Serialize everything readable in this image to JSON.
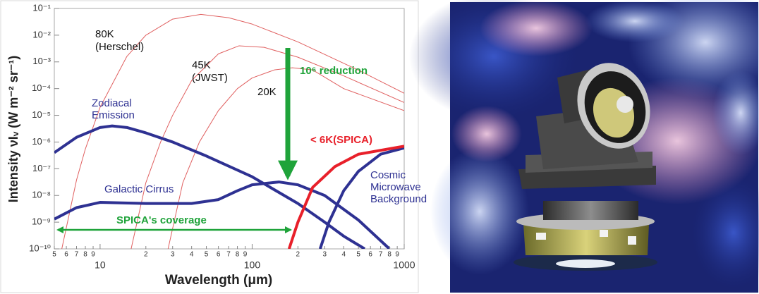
{
  "chart_data": {
    "type": "line",
    "xscale": "log",
    "yscale": "log",
    "xlabel": "Wavelength (μm)",
    "ylabel": "Intensity νIᵥ (W m⁻² sr⁻¹)",
    "xlim": [
      5,
      1000
    ],
    "ylim": [
      1e-10,
      0.1
    ],
    "xticks": [
      5,
      6,
      7,
      8,
      9,
      10,
      {
        "value": 20,
        "label": "2"
      },
      {
        "value": 30,
        "label": "3"
      },
      {
        "value": 40,
        "label": "4"
      },
      {
        "value": 50,
        "label": "5"
      },
      {
        "value": 60,
        "label": "6"
      },
      {
        "value": 70,
        "label": "7"
      },
      {
        "value": 80,
        "label": "8"
      },
      {
        "value": 90,
        "label": "9"
      },
      100,
      {
        "value": 200,
        "label": "2"
      },
      {
        "value": 300,
        "label": "3"
      },
      {
        "value": 400,
        "label": "4"
      },
      {
        "value": 500,
        "label": "5"
      },
      {
        "value": 600,
        "label": "6"
      },
      {
        "value": 700,
        "label": "7"
      },
      {
        "value": 800,
        "label": "8"
      },
      {
        "value": 900,
        "label": "9"
      },
      1000
    ],
    "yticks": [
      {
        "value": 1e-10,
        "label": "10⁻¹⁰"
      },
      {
        "value": 1e-09,
        "label": "10⁻⁹"
      },
      {
        "value": 1e-08,
        "label": "10⁻⁸"
      },
      {
        "value": 1e-07,
        "label": "10⁻⁷"
      },
      {
        "value": 1e-06,
        "label": "10⁻⁶"
      },
      {
        "value": 1e-05,
        "label": "10⁻⁵"
      },
      {
        "value": 0.0001,
        "label": "10⁻⁴"
      },
      {
        "value": 0.001,
        "label": "10⁻³"
      },
      {
        "value": 0.01,
        "label": "10⁻²"
      },
      {
        "value": 0.1,
        "label": "10⁻¹"
      }
    ],
    "series": [
      {
        "name": "80K",
        "color": "#e06060",
        "width": 1,
        "x": [
          5.6,
          7,
          8,
          10,
          15,
          20,
          30,
          46,
          70,
          100,
          200,
          500,
          1000
        ],
        "values": [
          1e-10,
          3.8e-08,
          5.5e-07,
          2e-05,
          0.0016,
          0.01,
          0.04,
          0.06,
          0.045,
          0.026,
          0.0056,
          0.00049,
          6.7e-05
        ]
      },
      {
        "name": "45K",
        "color": "#e06060",
        "width": 1,
        "x": [
          16,
          20,
          25,
          30,
          40,
          60,
          82,
          120,
          200,
          400,
          1000
        ],
        "values": [
          1e-10,
          3e-08,
          1e-06,
          1e-05,
          0.0002,
          0.002,
          0.004,
          0.0035,
          0.0015,
          0.0003,
          3e-05
        ]
      },
      {
        "name": "20K",
        "color": "#e06060",
        "width": 1,
        "x": [
          28,
          35,
          45,
          60,
          80,
          100,
          140,
          184,
          250,
          400,
          1000
        ],
        "values": [
          1e-10,
          3e-08,
          1e-06,
          1.5e-05,
          0.0001,
          0.00025,
          0.0005,
          0.0006,
          0.0005,
          0.0001,
          1.5e-05
        ]
      },
      {
        "name": "Zodiacal Emission",
        "color": "#2e3192",
        "width": 4,
        "x": [
          5,
          7,
          10,
          12,
          15,
          20,
          30,
          50,
          100,
          200,
          300,
          400,
          550
        ],
        "values": [
          4e-07,
          1.5e-06,
          3.5e-06,
          4e-06,
          3.5e-06,
          2.2e-06,
          1e-06,
          3e-07,
          5e-08,
          5e-09,
          1e-09,
          3e-10,
          1e-10
        ]
      },
      {
        "name": "Galactic Cirrus",
        "color": "#2e3192",
        "width": 4,
        "x": [
          5,
          7,
          10,
          20,
          40,
          60,
          80,
          100,
          150,
          200,
          300,
          500,
          800
        ],
        "values": [
          1.3e-09,
          3.5e-09,
          5.5e-09,
          5e-09,
          5e-09,
          7e-09,
          1.5e-08,
          2.5e-08,
          3.2e-08,
          2.5e-08,
          1e-08,
          1.2e-09,
          1e-10
        ]
      },
      {
        "name": "Cosmic Microwave Background",
        "color": "#2e3192",
        "width": 4,
        "x": [
          280,
          320,
          400,
          500,
          700,
          1000
        ],
        "values": [
          1e-10,
          1e-09,
          1.5e-08,
          8e-08,
          3.5e-07,
          6e-07
        ]
      },
      {
        "name": "< 6K(SPICA)",
        "color": "#e8202a",
        "width": 4,
        "x": [
          175,
          200,
          250,
          350,
          500,
          1000
        ],
        "values": [
          1e-10,
          1e-09,
          2e-08,
          1.2e-07,
          3.5e-07,
          7e-07
        ]
      }
    ],
    "annotations": [
      "(Herschel)",
      "(JWST)",
      "10⁶ reduction",
      "SPICA's coverage"
    ]
  }
}
